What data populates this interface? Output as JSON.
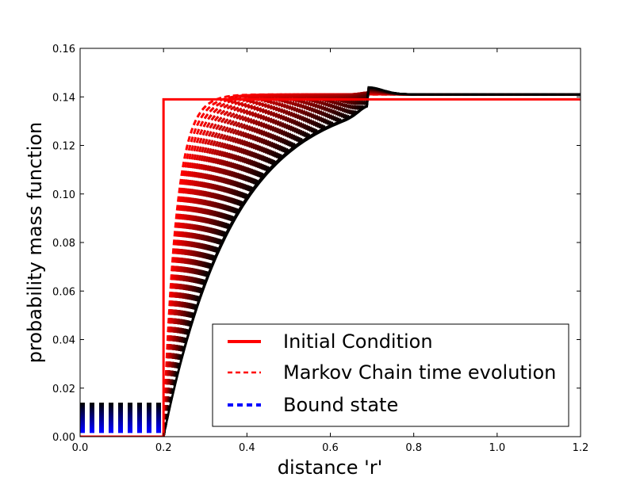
{
  "chart_data": {
    "type": "line",
    "title": "",
    "xlabel": "distance 'r'",
    "ylabel": "probability mass function",
    "xlim": [
      0.0,
      1.2
    ],
    "ylim": [
      0.0,
      0.16
    ],
    "x_ticks": [
      "0.0",
      "0.2",
      "0.4",
      "0.6",
      "0.8",
      "1.0",
      "1.2"
    ],
    "y_ticks": [
      "0.00",
      "0.02",
      "0.04",
      "0.06",
      "0.08",
      "0.10",
      "0.12",
      "0.14",
      "0.16"
    ],
    "grid": false,
    "legend_position": "lower-right",
    "colors": {
      "initial": "#ff0000",
      "evolution_start": "#ff0000",
      "evolution_end": "#000000",
      "bound": "#0000ff"
    },
    "series": [
      {
        "name": "Initial Condition",
        "style": "solid",
        "x": [
          0.0,
          0.2,
          0.2,
          1.2
        ],
        "y": [
          0.0,
          0.0,
          0.139,
          0.139
        ]
      },
      {
        "name": "Markov Chain time evolution",
        "style": "dashed",
        "x0": 0.2,
        "x_plateau": 0.69,
        "final_value": 0.141,
        "peak_value": 0.144,
        "n_curves": 40,
        "rise_constant_first": 0.03,
        "rise_constant_last": 0.17
      },
      {
        "name": "Bound state",
        "style": "dashed",
        "x": [
          0.0,
          0.2
        ],
        "y_min": 0.002,
        "y_max": 0.0135
      }
    ]
  }
}
